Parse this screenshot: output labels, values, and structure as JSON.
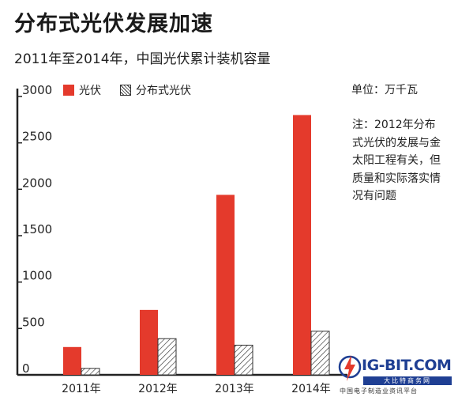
{
  "header": {
    "title": "分布式光伏发展加速",
    "subtitle": "2011年至2014年，中国光伏累计装机容量"
  },
  "unit_label": "单位：万千瓦",
  "note": "注：2012年分布式光伏的发展与金太阳工程有关，但质量和实际落实情况有问题",
  "legend": [
    {
      "label": "光伏",
      "style": "solid"
    },
    {
      "label": "分布式光伏",
      "style": "hatch"
    }
  ],
  "watermark": {
    "logo_text": "IG-BIT.COM",
    "band_text": "大比特商务网",
    "sub_text": "中国电子制造业资讯平台"
  },
  "colors": {
    "pv": "#e43a2c",
    "hatch": "#333333"
  },
  "chart_data": {
    "type": "bar",
    "title": "分布式光伏发展加速",
    "subtitle": "2011年至2014年，中国光伏累计装机容量",
    "categories": [
      "2011年",
      "2012年",
      "2013年",
      "2014年"
    ],
    "series": [
      {
        "name": "光伏",
        "values": [
          300,
          700,
          1940,
          2800
        ]
      },
      {
        "name": "分布式光伏",
        "values": [
          70,
          390,
          320,
          470
        ]
      }
    ],
    "yticks": [
      0,
      500,
      1000,
      1500,
      2000,
      2500,
      3000
    ],
    "ylim": [
      0,
      3000
    ],
    "legend_position": "top-left",
    "grid": false
  }
}
